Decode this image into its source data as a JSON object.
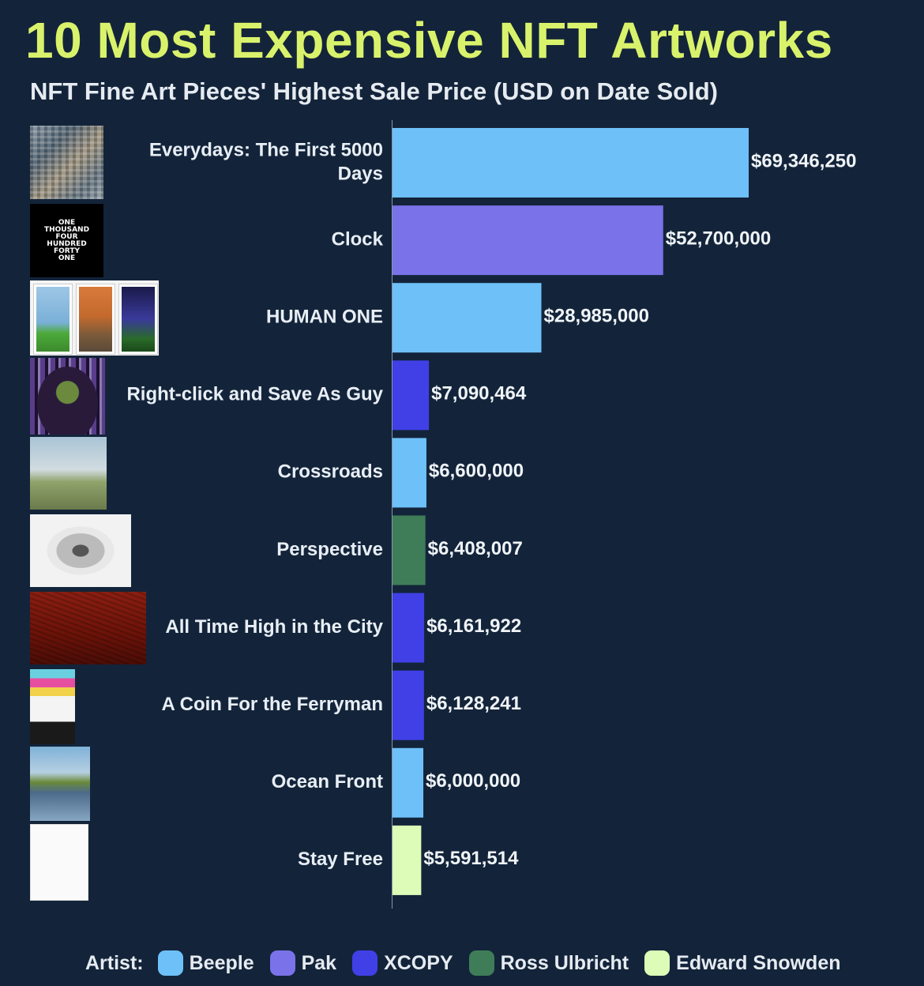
{
  "chart_data": {
    "type": "bar",
    "orientation": "horizontal",
    "title": "10 Most Expensive NFT Artworks",
    "subtitle": "NFT Fine Art Pieces' Highest Sale Price (USD on Date Sold)",
    "categories": [
      "Everydays: The First 5000 Days",
      "Clock",
      "HUMAN ONE",
      "Right-click and Save As Guy",
      "Crossroads",
      "Perspective",
      "All Time High in the City",
      "A Coin For the Ferryman",
      "Ocean Front",
      "Stay Free"
    ],
    "values": [
      69346250,
      52700000,
      28985000,
      7090464,
      6600000,
      6408007,
      6161922,
      6128241,
      6000000,
      5591514
    ],
    "value_labels": [
      "$69,346,250",
      "$52,700,000",
      "$28,985,000",
      "$7,090,464",
      "$6,600,000",
      "$6,408,007",
      "$6,161,922",
      "$6,128,241",
      "$6,000,000",
      "$5,591,514"
    ],
    "artists": [
      "Beeple",
      "Pak",
      "Beeple",
      "XCOPY",
      "Beeple",
      "Ross Ulbricht",
      "XCOPY",
      "XCOPY",
      "Beeple",
      "Edward Snowden"
    ],
    "xlim": [
      0,
      69346250
    ],
    "grid": false,
    "legend_title": "Artist:",
    "legend_position": "bottom",
    "legend": [
      {
        "name": "Beeple",
        "color": "#6ec0f8"
      },
      {
        "name": "Pak",
        "color": "#7a72e8"
      },
      {
        "name": "XCOPY",
        "color": "#4040e6"
      },
      {
        "name": "Ross Ulbricht",
        "color": "#3e7d58"
      },
      {
        "name": "Edward Snowden",
        "color": "#ddfcb8"
      }
    ]
  },
  "clock_thumb_text": [
    "ONE",
    "THOUSAND",
    "FOUR",
    "HUNDRED",
    "FORTY",
    "ONE"
  ]
}
